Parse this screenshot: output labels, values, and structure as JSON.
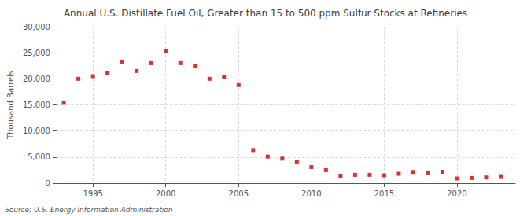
{
  "chart_data": {
    "type": "scatter",
    "title": "Annual U.S. Distillate Fuel Oil, Greater than 15 to 500 ppm Sulfur Stocks at Refineries",
    "y_label": "Thousand Barrels",
    "annotation": "Source: U.S. Energy Information Administration",
    "x": [
      1993,
      1994,
      1995,
      1996,
      1997,
      1998,
      1999,
      2000,
      2001,
      2002,
      2003,
      2004,
      2005,
      2006,
      2007,
      2008,
      2009,
      2010,
      2011,
      2012,
      2013,
      2014,
      2015,
      2016,
      2017,
      2018,
      2019,
      2020,
      2021,
      2022,
      2023
    ],
    "values": [
      15400,
      20000,
      20500,
      21100,
      23300,
      21500,
      23000,
      25400,
      23000,
      22500,
      20000,
      20400,
      18800,
      6200,
      5100,
      4700,
      4000,
      3100,
      2500,
      1400,
      1600,
      1600,
      1500,
      1800,
      2000,
      1900,
      2100,
      900,
      1000,
      1100,
      1200
    ],
    "color": "#cc0000",
    "marker": "square",
    "xlim": [
      1992.5,
      2024
    ],
    "xticks": [
      1995,
      2000,
      2005,
      2010,
      2015,
      2020
    ],
    "ylim": [
      0,
      30000
    ],
    "yticks": [
      0,
      {
        "value": 5000,
        "label": "5,000"
      },
      {
        "value": 10000,
        "label": "10,000"
      },
      {
        "value": 15000,
        "label": "15,000"
      },
      {
        "value": 20000,
        "label": "20,000"
      },
      {
        "value": 25000,
        "label": "25,000"
      },
      {
        "value": 30000,
        "label": "30,000"
      }
    ],
    "grid": true
  }
}
